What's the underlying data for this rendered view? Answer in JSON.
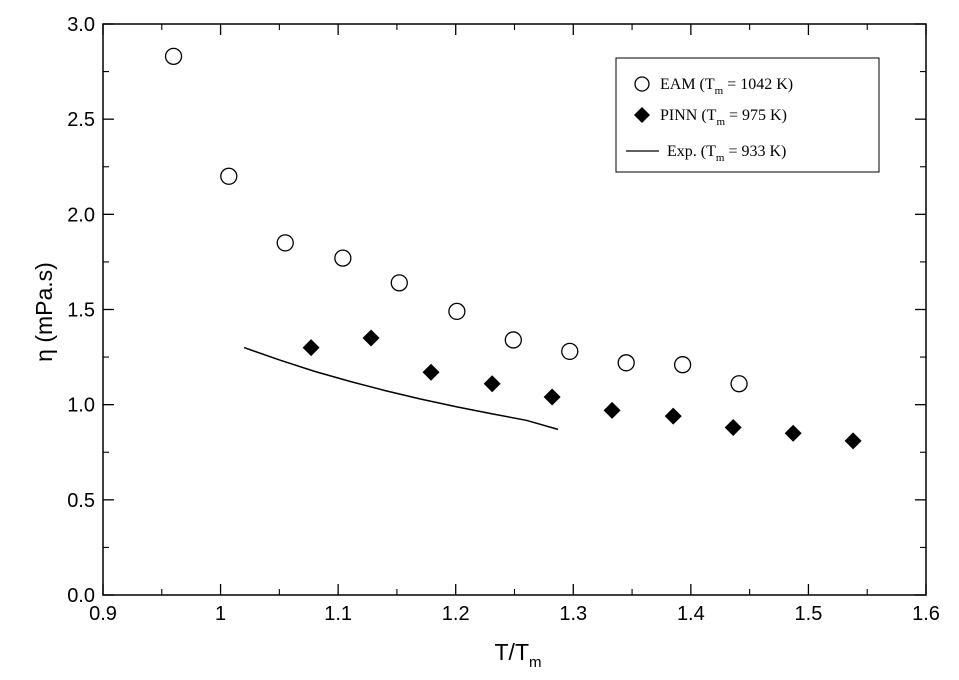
{
  "chart_data": {
    "type": "scatter",
    "xlabel": "T/T",
    "xlabel_sub": "m",
    "ylabel": "η (mPa.s)",
    "xlim": [
      0.9,
      1.6
    ],
    "ylim": [
      0.0,
      3.0
    ],
    "xticks": [
      "0.9",
      "1",
      "1.1",
      "1.2",
      "1.3",
      "1.4",
      "1.5",
      "1.6"
    ],
    "yticks": [
      "0.0",
      "0.5",
      "1.0",
      "1.5",
      "2.0",
      "2.5",
      "3.0"
    ],
    "grid": false,
    "legend_position": "top-right",
    "series": [
      {
        "name": "EAM  (T",
        "name_sub": "m",
        "name_tail": " = 1042 K)",
        "marker": "open-circle",
        "x": [
          0.96,
          1.007,
          1.055,
          1.104,
          1.152,
          1.201,
          1.249,
          1.297,
          1.345,
          1.393,
          1.441
        ],
        "y": [
          2.83,
          2.2,
          1.85,
          1.77,
          1.64,
          1.49,
          1.34,
          1.28,
          1.22,
          1.21,
          1.11
        ]
      },
      {
        "name": "PINN  (T",
        "name_sub": "m",
        "name_tail": " =  975 K)",
        "marker": "filled-diamond",
        "x": [
          1.077,
          1.128,
          1.179,
          1.231,
          1.282,
          1.333,
          1.385,
          1.436,
          1.487,
          1.538
        ],
        "y": [
          1.3,
          1.35,
          1.17,
          1.11,
          1.04,
          0.97,
          0.94,
          0.88,
          0.85,
          0.81
        ]
      },
      {
        "name": "Exp.   (T",
        "name_sub": "m",
        "name_tail": " =  933 K)",
        "marker": "line",
        "x": [
          1.02,
          1.05,
          1.08,
          1.11,
          1.14,
          1.17,
          1.2,
          1.23,
          1.26,
          1.287
        ],
        "y": [
          1.3,
          1.235,
          1.175,
          1.122,
          1.074,
          1.03,
          0.99,
          0.953,
          0.918,
          0.87
        ]
      }
    ]
  }
}
